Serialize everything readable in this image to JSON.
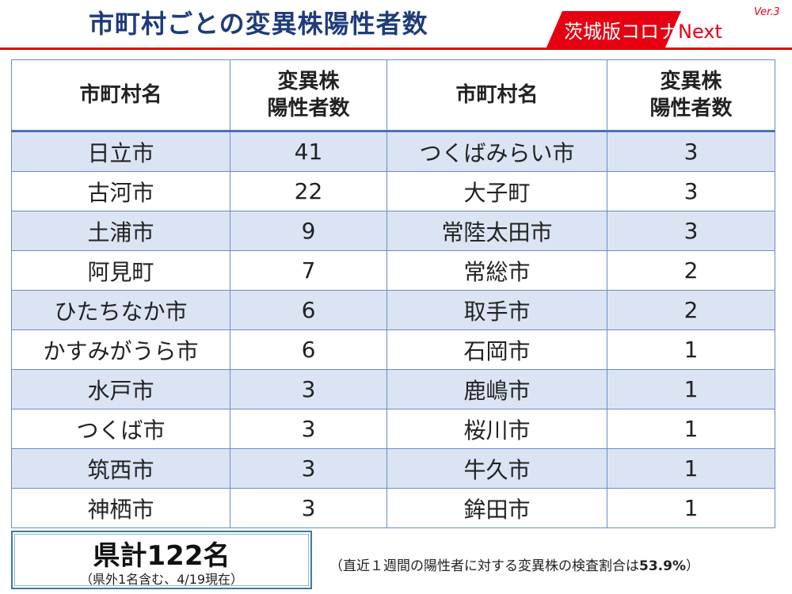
{
  "header": {
    "title": "市町村ごとの変異株陽性者数",
    "brand_main": "茨城版コロナ",
    "brand_next": "Next",
    "brand_ver": "Ver.3",
    "brand_color": "#e60012"
  },
  "table": {
    "col_name": "市町村名",
    "col_count_line1": "変異株",
    "col_count_line2": "陽性者数",
    "rows": [
      {
        "l_name": "日立市",
        "l_count": "41",
        "r_name": "つくばみらい市",
        "r_count": "3"
      },
      {
        "l_name": "古河市",
        "l_count": "22",
        "r_name": "大子町",
        "r_count": "3"
      },
      {
        "l_name": "土浦市",
        "l_count": "9",
        "r_name": "常陸太田市",
        "r_count": "3"
      },
      {
        "l_name": "阿見町",
        "l_count": "7",
        "r_name": "常総市",
        "r_count": "2"
      },
      {
        "l_name": "ひたちなか市",
        "l_count": "6",
        "r_name": "取手市",
        "r_count": "2"
      },
      {
        "l_name": "かすみがうら市",
        "l_count": "6",
        "r_name": "石岡市",
        "r_count": "1"
      },
      {
        "l_name": "水戸市",
        "l_count": "3",
        "r_name": "鹿嶋市",
        "r_count": "1"
      },
      {
        "l_name": "つくば市",
        "l_count": "3",
        "r_name": "桜川市",
        "r_count": "1"
      },
      {
        "l_name": "筑西市",
        "l_count": "3",
        "r_name": "牛久市",
        "r_count": "1"
      },
      {
        "l_name": "神栖市",
        "l_count": "3",
        "r_name": "鉾田市",
        "r_count": "1"
      }
    ]
  },
  "summary": {
    "total": "県計122名",
    "total_note": "（県外1名含む、4/19現在）",
    "note_prefix": "（直近１週間の陽性者に対する変異株の検査割合は",
    "note_value": "53.9%",
    "note_suffix": "）"
  }
}
